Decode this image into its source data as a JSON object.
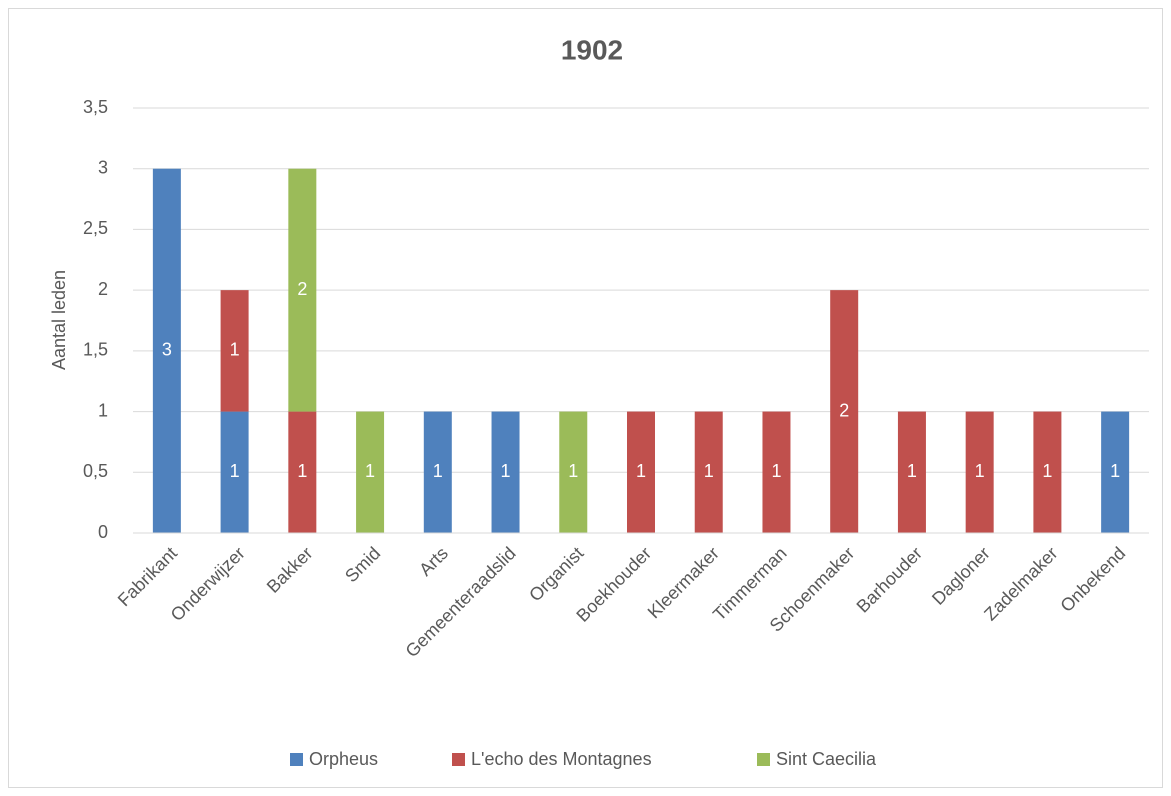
{
  "chart_data": {
    "type": "stacked_bar",
    "title": "1902",
    "y_label": "Aantal leden",
    "categories": [
      "Fabrikant",
      "Onderwijzer",
      "Bakker",
      "Smid",
      "Arts",
      "Gemeenteraadslid",
      "Organist",
      "Boekhouder",
      "Kleermaker",
      "Timmerman",
      "Schoenmaker",
      "Barhouder",
      "Dagloner",
      "Zadelmaker",
      "Onbekend"
    ],
    "series": [
      {
        "name": "Orpheus",
        "color": "#4f81bd",
        "values": [
          3,
          1,
          null,
          null,
          1,
          1,
          null,
          null,
          null,
          null,
          null,
          null,
          null,
          null,
          1
        ]
      },
      {
        "name": "L'echo des Montagnes",
        "color": "#c0504d",
        "values": [
          null,
          1,
          1,
          null,
          null,
          null,
          null,
          1,
          1,
          1,
          2,
          1,
          1,
          1,
          null
        ]
      },
      {
        "name": "Sint Caecilia",
        "color": "#9bbb59",
        "values": [
          null,
          null,
          2,
          1,
          null,
          null,
          1,
          null,
          null,
          null,
          null,
          null,
          null,
          null,
          null
        ]
      }
    ],
    "ylim": [
      0,
      3.5
    ],
    "yticks": [
      0,
      {
        "value": 0.5,
        "label": "0,5"
      },
      1,
      {
        "value": 1.5,
        "label": "1,5"
      },
      2,
      {
        "value": 2.5,
        "label": "2,5"
      },
      3,
      {
        "value": 3.5,
        "label": "3,5"
      }
    ],
    "grid": true,
    "legend": "bottom"
  }
}
